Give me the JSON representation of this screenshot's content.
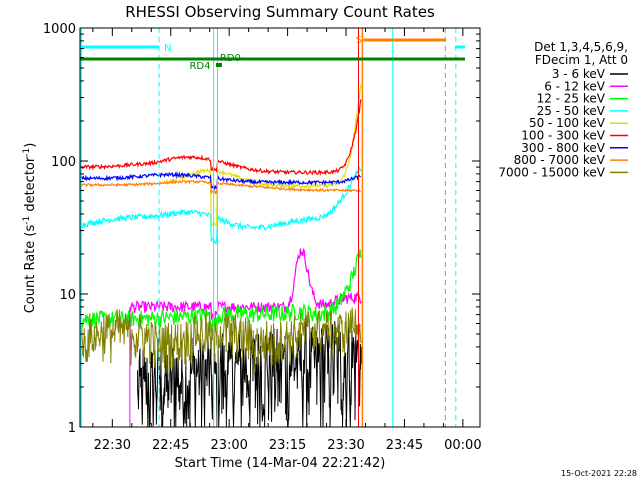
{
  "chart_data": {
    "type": "line",
    "title": "RHESSI Observing Summary Count Rates",
    "xlabel": "Start Time (14-Mar-04 22:21:42)",
    "ylabel_main": "Count Rate (s",
    "ylabel_sup1": "-1",
    "ylabel_mid": " detector",
    "ylabel_sup2": "-1",
    "ylabel_end": ")",
    "yscale": "log",
    "ylim": [
      1,
      1000
    ],
    "xlim_minutes": [
      21.7,
      64.4
    ],
    "x_ticks": [
      {
        "min": 30,
        "label": "22:30"
      },
      {
        "min": 45,
        "label": "22:45"
      },
      {
        "min": 60,
        "label": "23:00"
      },
      {
        "min": 75,
        "label": "23:15"
      },
      {
        "min": 90,
        "label": "23:30"
      },
      {
        "min": 105,
        "label": "23:45"
      },
      {
        "min": 120,
        "label": "00:00"
      }
    ],
    "y_ticks": [
      {
        "v": 1,
        "label": "1"
      },
      {
        "v": 10,
        "label": "10"
      },
      {
        "v": 100,
        "label": "100"
      },
      {
        "v": 1000,
        "label": "1000"
      }
    ],
    "legend_header": [
      "Det 1,3,4,5,6,9,",
      "FDecim 1, Att 0"
    ],
    "series": [
      {
        "name": "3 - 6 keV",
        "color": "#000000"
      },
      {
        "name": "6 - 12 keV",
        "color": "#ff00ff"
      },
      {
        "name": "12 - 25 keV",
        "color": "#00ff00"
      },
      {
        "name": "25 - 50 keV",
        "color": "#00ffff"
      },
      {
        "name": "50 - 100 keV",
        "color": "#e0e000"
      },
      {
        "name": "100 - 300 keV",
        "color": "#ff0000"
      },
      {
        "name": "300 - 800 keV",
        "color": "#0000ff"
      },
      {
        "name": "800 - 7000 keV",
        "color": "#ff8000"
      },
      {
        "name": "7000 - 15000 keV",
        "color": "#808000"
      }
    ],
    "annotations": {
      "saa_label": "N",
      "flare_label": "S",
      "rd0_label": "RD0",
      "rd4_label": "RD4"
    }
  },
  "footer_timestamp": "15-Oct-2021 22:28"
}
